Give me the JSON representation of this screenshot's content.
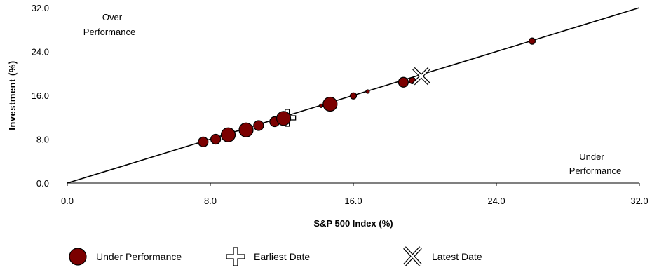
{
  "chart_data": {
    "type": "scatter",
    "xlabel": "S&P 500 Index (%)",
    "ylabel": "Investment (%)",
    "xlim": [
      0,
      32
    ],
    "ylim": [
      0,
      32
    ],
    "xticks": [
      "0.0",
      "8.0",
      "16.0",
      "24.0",
      "32.0"
    ],
    "yticks": [
      "0.0",
      "8.0",
      "16.0",
      "24.0",
      "32.0"
    ],
    "grid": false,
    "reference_line": {
      "from": [
        0,
        0
      ],
      "to": [
        32,
        32
      ]
    },
    "annotations": {
      "over": [
        "Over",
        "Performance"
      ],
      "under": [
        "Under",
        "Performance"
      ]
    },
    "series": [
      {
        "name": "Under Performance",
        "color": "#7b0000",
        "points": [
          {
            "x": 7.6,
            "y": 7.5,
            "size": "medium"
          },
          {
            "x": 8.3,
            "y": 8.0,
            "size": "medium"
          },
          {
            "x": 9.0,
            "y": 8.8,
            "size": "large"
          },
          {
            "x": 10.0,
            "y": 9.7,
            "size": "large"
          },
          {
            "x": 10.7,
            "y": 10.5,
            "size": "medium"
          },
          {
            "x": 11.6,
            "y": 11.2,
            "size": "medium"
          },
          {
            "x": 12.1,
            "y": 11.8,
            "size": "large"
          },
          {
            "x": 14.2,
            "y": 14.1,
            "size": "tiny"
          },
          {
            "x": 14.7,
            "y": 14.4,
            "size": "large"
          },
          {
            "x": 16.0,
            "y": 15.9,
            "size": "small"
          },
          {
            "x": 16.8,
            "y": 16.7,
            "size": "tiny"
          },
          {
            "x": 18.8,
            "y": 18.4,
            "size": "medium"
          },
          {
            "x": 19.3,
            "y": 18.7,
            "size": "small"
          },
          {
            "x": 26.0,
            "y": 25.9,
            "size": "small"
          }
        ]
      },
      {
        "name": "Earliest Date",
        "marker": "cross",
        "points": [
          {
            "x": 12.3,
            "y": 11.9
          }
        ]
      },
      {
        "name": "Latest Date",
        "marker": "x",
        "points": [
          {
            "x": 19.8,
            "y": 19.5
          }
        ]
      }
    ],
    "legend": {
      "position": "bottom",
      "items": [
        "Under Performance",
        "Earliest Date",
        "Latest Date"
      ]
    }
  }
}
